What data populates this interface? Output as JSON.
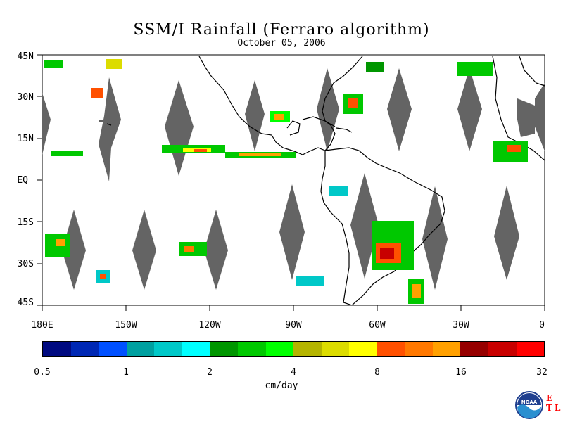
{
  "title": "SSM/I Rainfall (Ferraro algorithm)",
  "date": "October 05, 2006",
  "lat_labels": [
    "45N",
    "30N",
    "15N",
    "EQ",
    "15S",
    "30S",
    "45S"
  ],
  "lon_labels": [
    "180E",
    "150W",
    "120W",
    "90W",
    "60W",
    "30W",
    "0"
  ],
  "colorbar": {
    "colors": [
      "#000a80",
      "#0028b4",
      "#0050ff",
      "#00a0a0",
      "#00c8c8",
      "#00ffff",
      "#009600",
      "#00c800",
      "#00ff00",
      "#b4b400",
      "#dcdc00",
      "#ffff00",
      "#ff5000",
      "#ff7800",
      "#ffa000",
      "#960000",
      "#c80000",
      "#ff0000"
    ],
    "tick_labels": [
      "0.5",
      "1",
      "2",
      "4",
      "8",
      "16",
      "32"
    ],
    "unit": "cm/day"
  },
  "logos": {
    "noaa_text": "NOAA",
    "etl_letters": [
      "E",
      "T",
      "L"
    ]
  },
  "map_colors": {
    "gap": "#646464",
    "land_outline": "#000000"
  }
}
